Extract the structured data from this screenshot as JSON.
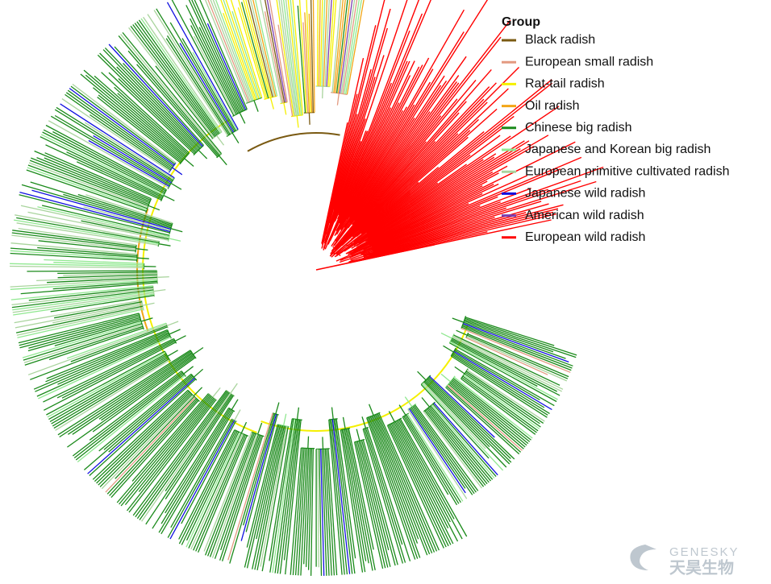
{
  "legend": {
    "title": "Group",
    "items": [
      {
        "label": "Black radish",
        "color": "#7a5a12"
      },
      {
        "label": "European small radish",
        "color": "#e39a80"
      },
      {
        "label": "Rat-tail radish",
        "color": "#f5f000"
      },
      {
        "label": "Oil radish",
        "color": "#f2a516"
      },
      {
        "label": "Chinese big radish",
        "color": "#1a8a1a"
      },
      {
        "label": "Japanese and Korean big radish",
        "color": "#90e890"
      },
      {
        "label": "European primitive cultivated radish",
        "color": "#a9d49d"
      },
      {
        "label": "Japanese wild radish",
        "color": "#1010e0"
      },
      {
        "label": "American wild radish",
        "color": "#7a3db0"
      },
      {
        "label": "European wild radish",
        "color": "#ff0000"
      }
    ]
  },
  "watermark": {
    "brand": "GENESKY",
    "name": "天昊生物"
  }
}
